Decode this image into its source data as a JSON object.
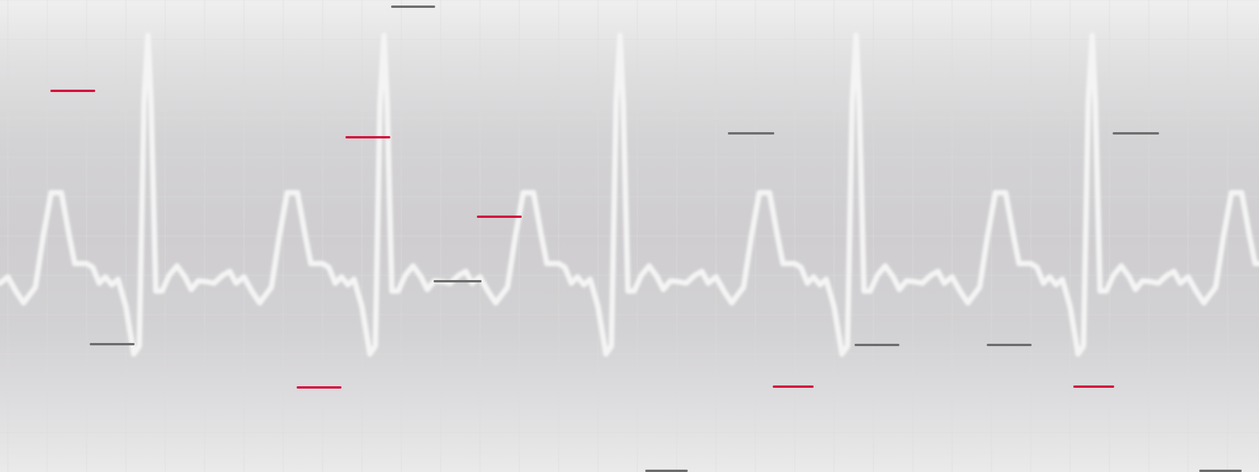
{
  "colors": {
    "background_top": "#efefef",
    "background_mid": "#cfcdd0",
    "grid": "#dcdcdc",
    "waveform": "#f4f4f4",
    "dash_red": "#d4143f",
    "dash_gray": "#6e6e6e"
  },
  "waveform": {
    "description_shown": false,
    "beat_count": 5
  },
  "dashes": {
    "red_count": 6,
    "gray_count": 9
  }
}
